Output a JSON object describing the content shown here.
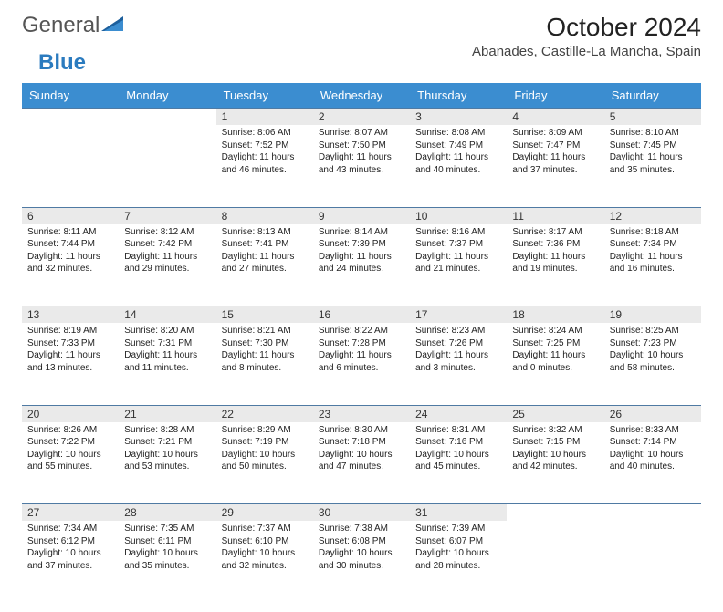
{
  "brand": {
    "word1": "General",
    "word2": "Blue"
  },
  "title": "October 2024",
  "location": "Abanades, Castille-La Mancha, Spain",
  "colors": {
    "header_bg": "#3b8dd0",
    "header_fg": "#ffffff",
    "daynum_bg": "#eaeaea",
    "row_border": "#4f7aa3",
    "brand_gray": "#555",
    "brand_blue": "#2b7bbf"
  },
  "weekdays": [
    "Sunday",
    "Monday",
    "Tuesday",
    "Wednesday",
    "Thursday",
    "Friday",
    "Saturday"
  ],
  "weeks": [
    [
      null,
      null,
      {
        "n": "1",
        "sr": "Sunrise: 8:06 AM",
        "ss": "Sunset: 7:52 PM",
        "d1": "Daylight: 11 hours",
        "d2": "and 46 minutes."
      },
      {
        "n": "2",
        "sr": "Sunrise: 8:07 AM",
        "ss": "Sunset: 7:50 PM",
        "d1": "Daylight: 11 hours",
        "d2": "and 43 minutes."
      },
      {
        "n": "3",
        "sr": "Sunrise: 8:08 AM",
        "ss": "Sunset: 7:49 PM",
        "d1": "Daylight: 11 hours",
        "d2": "and 40 minutes."
      },
      {
        "n": "4",
        "sr": "Sunrise: 8:09 AM",
        "ss": "Sunset: 7:47 PM",
        "d1": "Daylight: 11 hours",
        "d2": "and 37 minutes."
      },
      {
        "n": "5",
        "sr": "Sunrise: 8:10 AM",
        "ss": "Sunset: 7:45 PM",
        "d1": "Daylight: 11 hours",
        "d2": "and 35 minutes."
      }
    ],
    [
      {
        "n": "6",
        "sr": "Sunrise: 8:11 AM",
        "ss": "Sunset: 7:44 PM",
        "d1": "Daylight: 11 hours",
        "d2": "and 32 minutes."
      },
      {
        "n": "7",
        "sr": "Sunrise: 8:12 AM",
        "ss": "Sunset: 7:42 PM",
        "d1": "Daylight: 11 hours",
        "d2": "and 29 minutes."
      },
      {
        "n": "8",
        "sr": "Sunrise: 8:13 AM",
        "ss": "Sunset: 7:41 PM",
        "d1": "Daylight: 11 hours",
        "d2": "and 27 minutes."
      },
      {
        "n": "9",
        "sr": "Sunrise: 8:14 AM",
        "ss": "Sunset: 7:39 PM",
        "d1": "Daylight: 11 hours",
        "d2": "and 24 minutes."
      },
      {
        "n": "10",
        "sr": "Sunrise: 8:16 AM",
        "ss": "Sunset: 7:37 PM",
        "d1": "Daylight: 11 hours",
        "d2": "and 21 minutes."
      },
      {
        "n": "11",
        "sr": "Sunrise: 8:17 AM",
        "ss": "Sunset: 7:36 PM",
        "d1": "Daylight: 11 hours",
        "d2": "and 19 minutes."
      },
      {
        "n": "12",
        "sr": "Sunrise: 8:18 AM",
        "ss": "Sunset: 7:34 PM",
        "d1": "Daylight: 11 hours",
        "d2": "and 16 minutes."
      }
    ],
    [
      {
        "n": "13",
        "sr": "Sunrise: 8:19 AM",
        "ss": "Sunset: 7:33 PM",
        "d1": "Daylight: 11 hours",
        "d2": "and 13 minutes."
      },
      {
        "n": "14",
        "sr": "Sunrise: 8:20 AM",
        "ss": "Sunset: 7:31 PM",
        "d1": "Daylight: 11 hours",
        "d2": "and 11 minutes."
      },
      {
        "n": "15",
        "sr": "Sunrise: 8:21 AM",
        "ss": "Sunset: 7:30 PM",
        "d1": "Daylight: 11 hours",
        "d2": "and 8 minutes."
      },
      {
        "n": "16",
        "sr": "Sunrise: 8:22 AM",
        "ss": "Sunset: 7:28 PM",
        "d1": "Daylight: 11 hours",
        "d2": "and 6 minutes."
      },
      {
        "n": "17",
        "sr": "Sunrise: 8:23 AM",
        "ss": "Sunset: 7:26 PM",
        "d1": "Daylight: 11 hours",
        "d2": "and 3 minutes."
      },
      {
        "n": "18",
        "sr": "Sunrise: 8:24 AM",
        "ss": "Sunset: 7:25 PM",
        "d1": "Daylight: 11 hours",
        "d2": "and 0 minutes."
      },
      {
        "n": "19",
        "sr": "Sunrise: 8:25 AM",
        "ss": "Sunset: 7:23 PM",
        "d1": "Daylight: 10 hours",
        "d2": "and 58 minutes."
      }
    ],
    [
      {
        "n": "20",
        "sr": "Sunrise: 8:26 AM",
        "ss": "Sunset: 7:22 PM",
        "d1": "Daylight: 10 hours",
        "d2": "and 55 minutes."
      },
      {
        "n": "21",
        "sr": "Sunrise: 8:28 AM",
        "ss": "Sunset: 7:21 PM",
        "d1": "Daylight: 10 hours",
        "d2": "and 53 minutes."
      },
      {
        "n": "22",
        "sr": "Sunrise: 8:29 AM",
        "ss": "Sunset: 7:19 PM",
        "d1": "Daylight: 10 hours",
        "d2": "and 50 minutes."
      },
      {
        "n": "23",
        "sr": "Sunrise: 8:30 AM",
        "ss": "Sunset: 7:18 PM",
        "d1": "Daylight: 10 hours",
        "d2": "and 47 minutes."
      },
      {
        "n": "24",
        "sr": "Sunrise: 8:31 AM",
        "ss": "Sunset: 7:16 PM",
        "d1": "Daylight: 10 hours",
        "d2": "and 45 minutes."
      },
      {
        "n": "25",
        "sr": "Sunrise: 8:32 AM",
        "ss": "Sunset: 7:15 PM",
        "d1": "Daylight: 10 hours",
        "d2": "and 42 minutes."
      },
      {
        "n": "26",
        "sr": "Sunrise: 8:33 AM",
        "ss": "Sunset: 7:14 PM",
        "d1": "Daylight: 10 hours",
        "d2": "and 40 minutes."
      }
    ],
    [
      {
        "n": "27",
        "sr": "Sunrise: 7:34 AM",
        "ss": "Sunset: 6:12 PM",
        "d1": "Daylight: 10 hours",
        "d2": "and 37 minutes."
      },
      {
        "n": "28",
        "sr": "Sunrise: 7:35 AM",
        "ss": "Sunset: 6:11 PM",
        "d1": "Daylight: 10 hours",
        "d2": "and 35 minutes."
      },
      {
        "n": "29",
        "sr": "Sunrise: 7:37 AM",
        "ss": "Sunset: 6:10 PM",
        "d1": "Daylight: 10 hours",
        "d2": "and 32 minutes."
      },
      {
        "n": "30",
        "sr": "Sunrise: 7:38 AM",
        "ss": "Sunset: 6:08 PM",
        "d1": "Daylight: 10 hours",
        "d2": "and 30 minutes."
      },
      {
        "n": "31",
        "sr": "Sunrise: 7:39 AM",
        "ss": "Sunset: 6:07 PM",
        "d1": "Daylight: 10 hours",
        "d2": "and 28 minutes."
      },
      null,
      null
    ]
  ]
}
